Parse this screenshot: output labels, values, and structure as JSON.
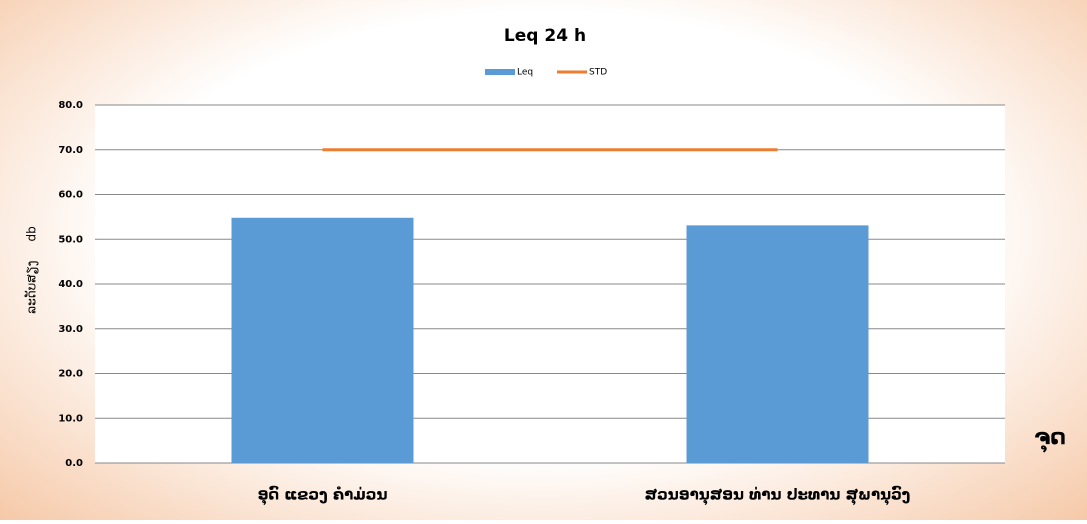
{
  "chart_data": {
    "type": "bar",
    "title": "Leq 24 h",
    "categories": [
      "ອຸດົ ແຂວງ ຄໍາມ່ວນ",
      "ສວນອານຸສອນ ທ່ານ ປະທານ ສຸພານຸວົງ"
    ],
    "series": [
      {
        "name": "Leq",
        "type": "bar",
        "color": "#5b9bd5",
        "values": [
          54.8,
          53.1
        ]
      },
      {
        "name": "STD",
        "type": "line",
        "color": "#ed7d31",
        "values": [
          70,
          70
        ]
      }
    ],
    "y_label": "ລະດັບສຽງ     db",
    "x_label": "ຈຸດ",
    "ylim": [
      0,
      80
    ],
    "yticks": [
      {
        "value": 0,
        "label": "0.0"
      },
      {
        "value": 10,
        "label": "10.0"
      },
      {
        "value": 20,
        "label": "20.0"
      },
      {
        "value": 30,
        "label": "30.0"
      },
      {
        "value": 40,
        "label": "40.0"
      },
      {
        "value": 50,
        "label": "50.0"
      },
      {
        "value": 60,
        "label": "60.0"
      },
      {
        "value": 70,
        "label": "70.0"
      },
      {
        "value": 80,
        "label": "80.0"
      }
    ],
    "grid": true,
    "legend": "top"
  }
}
